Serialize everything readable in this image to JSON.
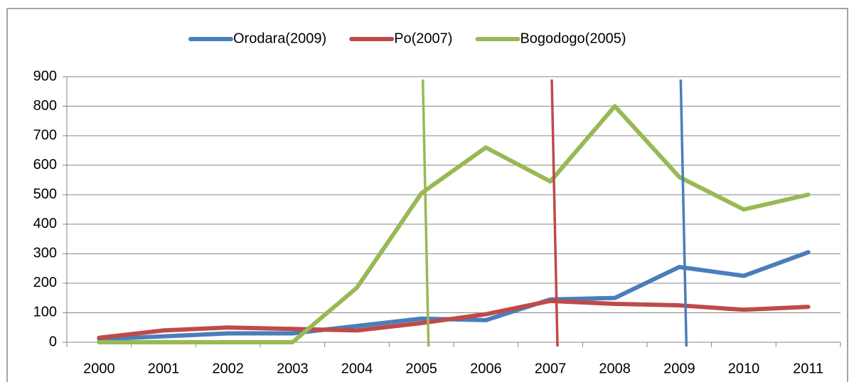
{
  "chart_data": {
    "type": "line",
    "categories": [
      "2000",
      "2001",
      "2002",
      "2003",
      "2004",
      "2005",
      "2006",
      "2007",
      "2008",
      "2009",
      "2010",
      "2011"
    ],
    "series": [
      {
        "name": "Orodara(2009)",
        "color": "#4a7ebb",
        "values": [
          10,
          20,
          30,
          30,
          55,
          80,
          75,
          145,
          150,
          255,
          225,
          305
        ]
      },
      {
        "name": "Po(2007)",
        "color": "#be4b48",
        "values": [
          15,
          40,
          50,
          45,
          40,
          65,
          95,
          140,
          130,
          125,
          110,
          120
        ]
      },
      {
        "name": "Bogodogo(2005)",
        "color": "#98b954",
        "values": [
          0,
          0,
          0,
          0,
          185,
          505,
          660,
          545,
          800,
          560,
          450,
          500
        ]
      }
    ],
    "intervention_lines": [
      {
        "category": "2005",
        "color": "#98b954"
      },
      {
        "category": "2007",
        "color": "#be4b48"
      },
      {
        "category": "2009",
        "color": "#4a7ebb"
      }
    ],
    "ylim": [
      0,
      900
    ],
    "yticks": [
      0,
      100,
      200,
      300,
      400,
      500,
      600,
      700,
      800,
      900
    ],
    "grid": true,
    "legend": "top"
  }
}
